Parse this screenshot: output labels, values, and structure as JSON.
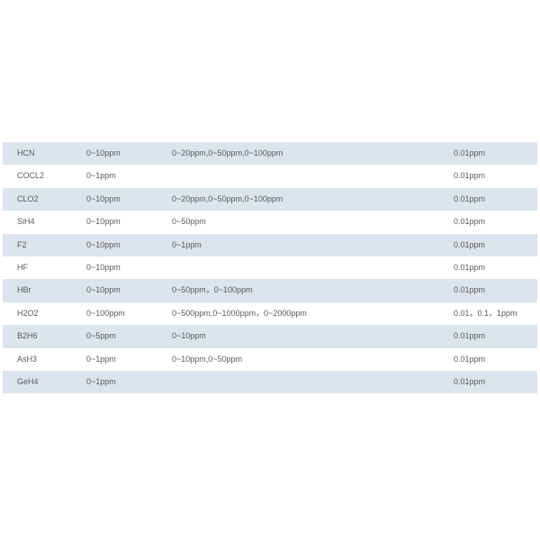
{
  "table": {
    "rows": [
      [
        "HCN",
        "0~10ppm",
        "0~20ppm,0~50ppm,0~100ppm",
        "0.01ppm"
      ],
      [
        "COCL2",
        "0~1ppm",
        "",
        "0.01ppm"
      ],
      [
        "CLO2",
        "0~10ppm",
        "0~20ppm,0~50ppm,0~100ppm",
        "0.01ppm"
      ],
      [
        "SiH4",
        "0~10ppm",
        "0~50ppm",
        "0.01ppm"
      ],
      [
        "F2",
        "0~10ppm",
        "0~1ppm",
        "0.01ppm"
      ],
      [
        "HF",
        "0~10ppm",
        "",
        "0.01ppm"
      ],
      [
        "HBr",
        "0~10ppm",
        "0~50ppm，0~100ppm",
        "0.01ppm"
      ],
      [
        "H2O2",
        "0~100ppm",
        "0~500ppm,0~1000ppm，0~2000ppm",
        "0.01，0.1，1ppm"
      ],
      [
        "B2H6",
        "0~5ppm",
        "0~10ppm",
        "0.01ppm"
      ],
      [
        "AsH3",
        "0~1ppm",
        "0~10ppm,0~50ppm",
        "0.01ppm"
      ],
      [
        "GeH4",
        "0~1ppm",
        "",
        "0.01ppm"
      ]
    ],
    "stripe_color": "#dce4ee"
  }
}
